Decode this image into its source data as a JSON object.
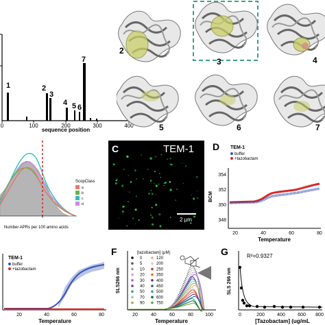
{
  "panelA": {
    "xlabel": "sequence position",
    "xticks": [
      "0",
      "100",
      "200",
      "300",
      "400"
    ],
    "peak_labels": [
      "1",
      "2",
      "3",
      "4",
      "5",
      "6",
      "7"
    ]
  },
  "panelB": {
    "structure_labels": [
      "2",
      "3",
      "4",
      "5",
      "6",
      "7"
    ]
  },
  "panelHist": {
    "xlabel": "Number APRs per 100 amino acids",
    "legend_title": "ScopClass",
    "legend_items": [
      "a",
      "b",
      "c",
      "d"
    ]
  },
  "panelC": {
    "letter": "C",
    "title": "TEM-1",
    "scalebar": "2 μm"
  },
  "panelD": {
    "letter": "D",
    "title": "TEM-1",
    "legend": [
      "buffer",
      "+tazobactam"
    ],
    "ylabel": "BCM",
    "xlabel": "Temperature",
    "yticks": [
      "354",
      "352",
      "350",
      "348"
    ],
    "xticks": [
      "20",
      "40",
      "60",
      "80"
    ]
  },
  "panelE": {
    "title": "TEM-1",
    "legend": [
      "buffer",
      "+tazobactam"
    ],
    "xlabel": "Temperature",
    "xticks": [
      "20",
      "40",
      "60",
      "80"
    ]
  },
  "panelF": {
    "letter": "F",
    "ylabel": "SLS266 nm",
    "xlabel": "Temperature",
    "legend_title": "[tazobactam] (μM)",
    "legend_col1": [
      "0",
      "5",
      "10",
      "20",
      "30",
      "40",
      "50",
      "70",
      "90"
    ],
    "legend_col2": [
      "120",
      "200",
      "250",
      "350",
      "400",
      "450",
      "500",
      "600",
      "750"
    ],
    "xticks": [
      "20",
      "40",
      "60",
      "80",
      "100"
    ]
  },
  "panelG": {
    "letter": "G",
    "ylabel": "SLS 266 nm",
    "xlabel": "[Tazobactam] (ug/mL",
    "r2": "R²=0.9327",
    "xticks": [
      "0",
      "200",
      "400",
      "600",
      "800"
    ]
  },
  "colors": {
    "blue": "#3553b8",
    "red": "#d42a2a",
    "teal": "#3aa08a",
    "green": "#2bd15a"
  }
}
